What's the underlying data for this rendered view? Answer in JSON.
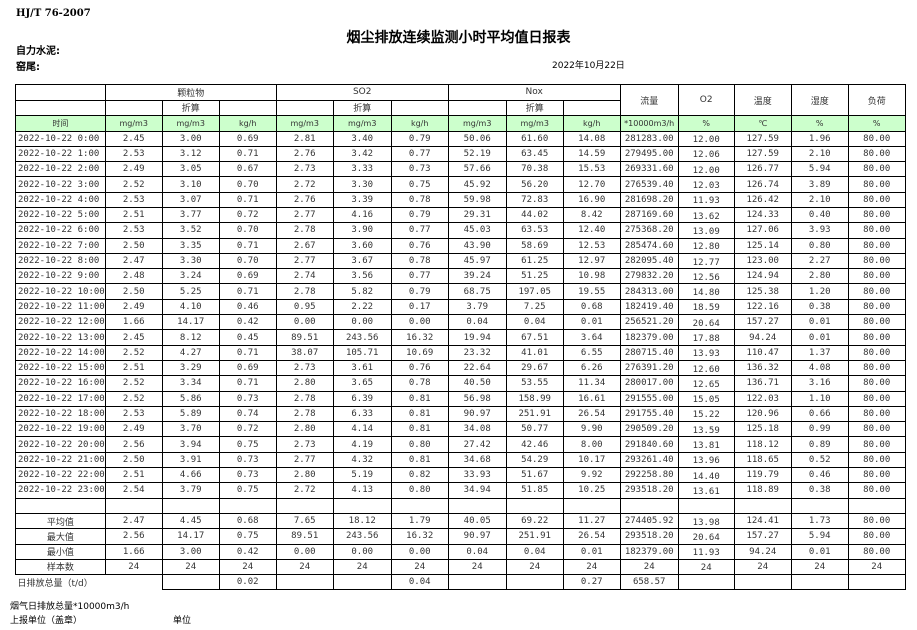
{
  "header": {
    "standard": "HJ/T  76-2007",
    "title": "烟尘排放连续监测小时平均值日报表",
    "company": "自力水泥:",
    "kiln": "窑尾:",
    "date": "2022年10月22日"
  },
  "table": {
    "groups": [
      "颗粒物",
      "SO2",
      "Nox",
      "流量",
      "O2",
      "温度",
      "湿度",
      "负荷"
    ],
    "converted_label": "折算",
    "time_label": "时间",
    "units": [
      "mg/m3",
      "mg/m3",
      "kg/h",
      "mg/m3",
      "mg/m3",
      "kg/h",
      "mg/m3",
      "mg/m3",
      "kg/h",
      "*10000m3/h",
      "%",
      "℃",
      "%",
      "%"
    ],
    "rows": [
      [
        "2022-10-22 0:00",
        "2.45",
        "3.00",
        "0.69",
        "2.81",
        "3.40",
        "0.79",
        "50.06",
        "61.60",
        "14.08",
        "281283.00",
        "12.00",
        "127.59",
        "1.96",
        "80.00"
      ],
      [
        "2022-10-22 1:00",
        "2.53",
        "3.12",
        "0.71",
        "2.76",
        "3.42",
        "0.77",
        "52.19",
        "63.45",
        "14.59",
        "279495.00",
        "12.06",
        "127.59",
        "2.10",
        "80.00"
      ],
      [
        "2022-10-22 2:00",
        "2.49",
        "3.05",
        "0.67",
        "2.73",
        "3.33",
        "0.73",
        "57.66",
        "70.38",
        "15.53",
        "269331.60",
        "12.00",
        "126.77",
        "5.94",
        "80.00"
      ],
      [
        "2022-10-22 3:00",
        "2.52",
        "3.10",
        "0.70",
        "2.72",
        "3.30",
        "0.75",
        "45.92",
        "56.20",
        "12.70",
        "276539.40",
        "12.03",
        "126.74",
        "3.89",
        "80.00"
      ],
      [
        "2022-10-22 4:00",
        "2.53",
        "3.07",
        "0.71",
        "2.76",
        "3.39",
        "0.78",
        "59.98",
        "72.83",
        "16.90",
        "281698.20",
        "11.93",
        "126.42",
        "2.10",
        "80.00"
      ],
      [
        "2022-10-22 5:00",
        "2.51",
        "3.77",
        "0.72",
        "2.77",
        "4.16",
        "0.79",
        "29.31",
        "44.02",
        "8.42",
        "287169.60",
        "13.62",
        "124.33",
        "0.40",
        "80.00"
      ],
      [
        "2022-10-22 6:00",
        "2.53",
        "3.52",
        "0.70",
        "2.78",
        "3.90",
        "0.77",
        "45.03",
        "63.53",
        "12.40",
        "275368.20",
        "13.09",
        "127.06",
        "3.93",
        "80.00"
      ],
      [
        "2022-10-22 7:00",
        "2.50",
        "3.35",
        "0.71",
        "2.67",
        "3.60",
        "0.76",
        "43.90",
        "58.69",
        "12.53",
        "285474.60",
        "12.80",
        "125.14",
        "0.80",
        "80.00"
      ],
      [
        "2022-10-22 8:00",
        "2.47",
        "3.30",
        "0.70",
        "2.77",
        "3.67",
        "0.78",
        "45.97",
        "61.25",
        "12.97",
        "282095.40",
        "12.77",
        "123.00",
        "2.27",
        "80.00"
      ],
      [
        "2022-10-22 9:00",
        "2.48",
        "3.24",
        "0.69",
        "2.74",
        "3.56",
        "0.77",
        "39.24",
        "51.25",
        "10.98",
        "279832.20",
        "12.56",
        "124.94",
        "2.80",
        "80.00"
      ],
      [
        "2022-10-22 10:00",
        "2.50",
        "5.25",
        "0.71",
        "2.78",
        "5.82",
        "0.79",
        "68.75",
        "197.05",
        "19.55",
        "284313.00",
        "14.80",
        "125.38",
        "1.20",
        "80.00"
      ],
      [
        "2022-10-22 11:00",
        "2.49",
        "4.10",
        "0.46",
        "0.95",
        "2.22",
        "0.17",
        "3.79",
        "7.25",
        "0.68",
        "182419.40",
        "18.59",
        "122.16",
        "0.38",
        "80.00"
      ],
      [
        "2022-10-22 12:00",
        "1.66",
        "14.17",
        "0.42",
        "0.00",
        "0.00",
        "0.00",
        "0.04",
        "0.04",
        "0.01",
        "256521.20",
        "20.64",
        "157.27",
        "0.01",
        "80.00"
      ],
      [
        "2022-10-22 13:00",
        "2.45",
        "8.12",
        "0.45",
        "89.51",
        "243.56",
        "16.32",
        "19.94",
        "67.51",
        "3.64",
        "182379.00",
        "17.88",
        "94.24",
        "0.01",
        "80.00"
      ],
      [
        "2022-10-22 14:00",
        "2.52",
        "4.27",
        "0.71",
        "38.07",
        "105.71",
        "10.69",
        "23.32",
        "41.01",
        "6.55",
        "280715.40",
        "13.93",
        "110.47",
        "1.37",
        "80.00"
      ],
      [
        "2022-10-22 15:00",
        "2.51",
        "3.29",
        "0.69",
        "2.73",
        "3.61",
        "0.76",
        "22.64",
        "29.67",
        "6.26",
        "276391.20",
        "12.60",
        "136.32",
        "4.08",
        "80.00"
      ],
      [
        "2022-10-22 16:00",
        "2.52",
        "3.34",
        "0.71",
        "2.80",
        "3.65",
        "0.78",
        "40.50",
        "53.55",
        "11.34",
        "280017.00",
        "12.65",
        "136.71",
        "3.16",
        "80.00"
      ],
      [
        "2022-10-22 17:00",
        "2.52",
        "5.86",
        "0.73",
        "2.78",
        "6.39",
        "0.81",
        "56.98",
        "158.99",
        "16.61",
        "291555.00",
        "15.05",
        "122.03",
        "1.10",
        "80.00"
      ],
      [
        "2022-10-22 18:00",
        "2.53",
        "5.89",
        "0.74",
        "2.78",
        "6.33",
        "0.81",
        "90.97",
        "251.91",
        "26.54",
        "291755.40",
        "15.22",
        "120.96",
        "0.66",
        "80.00"
      ],
      [
        "2022-10-22 19:00",
        "2.49",
        "3.70",
        "0.72",
        "2.80",
        "4.14",
        "0.81",
        "34.08",
        "50.77",
        "9.90",
        "290509.20",
        "13.59",
        "125.18",
        "0.99",
        "80.00"
      ],
      [
        "2022-10-22 20:00",
        "2.56",
        "3.94",
        "0.75",
        "2.73",
        "4.19",
        "0.80",
        "27.42",
        "42.46",
        "8.00",
        "291840.60",
        "13.81",
        "118.12",
        "0.89",
        "80.00"
      ],
      [
        "2022-10-22 21:00",
        "2.50",
        "3.91",
        "0.73",
        "2.77",
        "4.32",
        "0.81",
        "34.68",
        "54.29",
        "10.17",
        "293261.40",
        "13.96",
        "118.65",
        "0.52",
        "80.00"
      ],
      [
        "2022-10-22 22:00",
        "2.51",
        "4.66",
        "0.73",
        "2.80",
        "5.19",
        "0.82",
        "33.93",
        "51.67",
        "9.92",
        "292258.80",
        "14.40",
        "119.79",
        "0.46",
        "80.00"
      ],
      [
        "2022-10-22 23:00",
        "2.54",
        "3.79",
        "0.75",
        "2.72",
        "4.13",
        "0.80",
        "34.94",
        "51.85",
        "10.25",
        "293518.20",
        "13.61",
        "118.89",
        "0.38",
        "80.00"
      ]
    ],
    "stats": [
      [
        "平均值",
        "2.47",
        "4.45",
        "0.68",
        "7.65",
        "18.12",
        "1.79",
        "40.05",
        "69.22",
        "11.27",
        "274405.92",
        "13.98",
        "124.41",
        "1.73",
        "80.00"
      ],
      [
        "最大值",
        "2.56",
        "14.17",
        "0.75",
        "89.51",
        "243.56",
        "16.32",
        "90.97",
        "251.91",
        "26.54",
        "293518.20",
        "20.64",
        "157.27",
        "5.94",
        "80.00"
      ],
      [
        "最小值",
        "1.66",
        "3.00",
        "0.42",
        "0.00",
        "0.00",
        "0.00",
        "0.04",
        "0.04",
        "0.01",
        "182379.00",
        "11.93",
        "94.24",
        "0.01",
        "80.00"
      ],
      [
        "样本数",
        "24",
        "24",
        "24",
        "24",
        "24",
        "24",
        "24",
        "24",
        "24",
        "24",
        "24",
        "24",
        "24",
        "24"
      ]
    ],
    "daily_total": {
      "label": "日排放总量（t/d）",
      "cells": [
        "",
        "0.02",
        "",
        "",
        "0.04",
        "",
        "",
        "0.27",
        "658.57",
        "",
        "",
        "",
        ""
      ]
    }
  },
  "footer": {
    "flue_gas_total": "烟气日排放总量*10000m3/h",
    "reporting_unit": "上报单位（盖章）",
    "unit": "单位"
  },
  "colors": {
    "units_row_bg": "#ccffcc"
  }
}
